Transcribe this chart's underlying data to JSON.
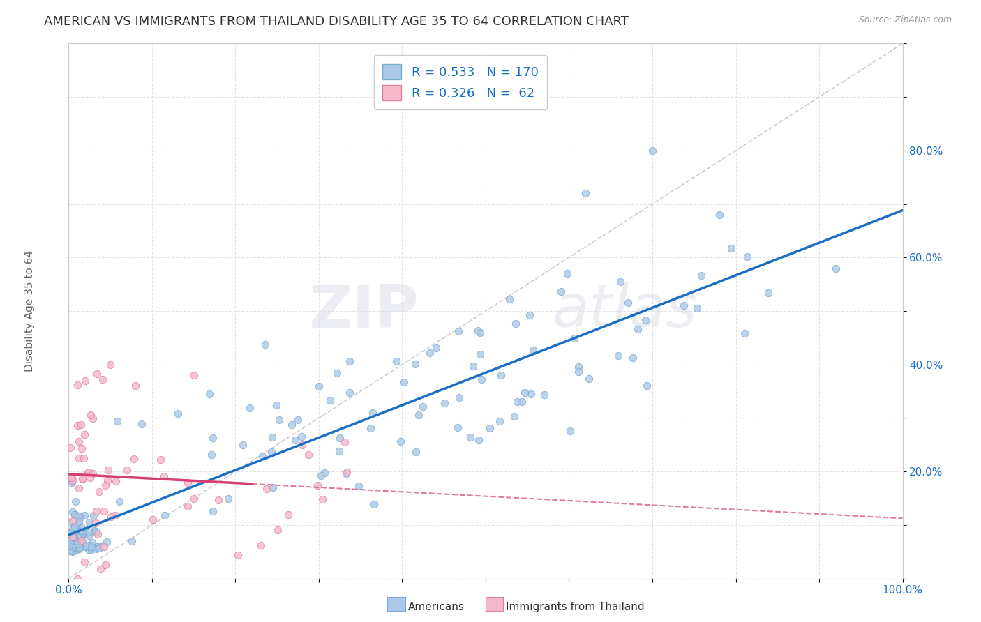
{
  "title": "AMERICAN VS IMMIGRANTS FROM THAILAND DISABILITY AGE 35 TO 64 CORRELATION CHART",
  "source": "Source: ZipAtlas.com",
  "ylabel": "Disability Age 35 to 64",
  "xlim": [
    0,
    1.0
  ],
  "ylim": [
    0,
    1.0
  ],
  "xtick_positions": [
    0.0,
    0.1,
    0.2,
    0.3,
    0.4,
    0.5,
    0.6,
    0.7,
    0.8,
    0.9,
    1.0
  ],
  "ytick_positions": [
    0.0,
    0.1,
    0.2,
    0.3,
    0.4,
    0.5,
    0.6,
    0.7,
    0.8,
    0.9,
    1.0
  ],
  "xtick_labels": [
    "0.0%",
    "",
    "",
    "",
    "",
    "",
    "",
    "",
    "",
    "",
    "100.0%"
  ],
  "ytick_labels": [
    "",
    "",
    "20.0%",
    "",
    "40.0%",
    "",
    "60.0%",
    "",
    "80.0%",
    "",
    ""
  ],
  "blue_R": 0.533,
  "blue_N": 170,
  "pink_R": 0.326,
  "pink_N": 62,
  "blue_color": "#adc8e8",
  "blue_edge": "#7aaace",
  "pink_color": "#f5b8cb",
  "pink_edge": "#e080a0",
  "trendline_blue": "#1a6fc4",
  "trendline_pink": "#d44070",
  "trendline_diag": "#cccccc",
  "watermark_zip": "ZIP",
  "watermark_atlas": "atlas",
  "legend_color": "#1a6fc4",
  "background": "#ffffff",
  "plot_bg": "#ffffff",
  "grid_color": "#dddddd",
  "title_fontsize": 13,
  "axis_label_fontsize": 11,
  "tick_fontsize": 11,
  "legend_fontsize": 13,
  "legend_Americans": "Americans",
  "legend_Thailand": "Immigrants from Thailand"
}
